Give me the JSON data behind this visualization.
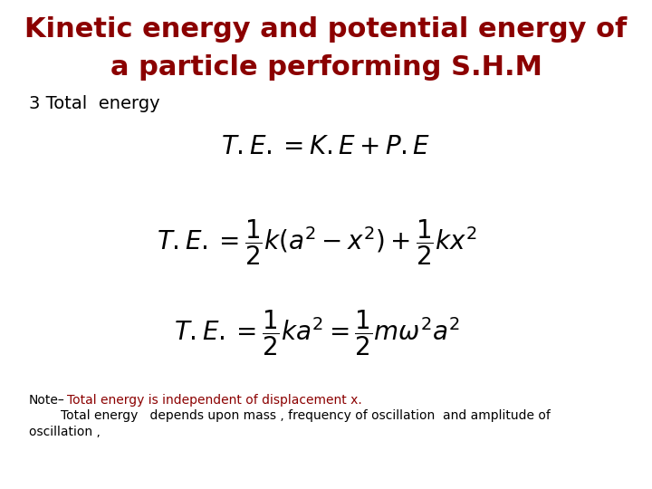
{
  "title_line1": "Kinetic energy and potential energy of",
  "title_line2": "a particle performing S.H.M",
  "title_color": "#8B0000",
  "subtitle": "3 Total  energy",
  "subtitle_color": "#000000",
  "eq1": "$T.E. = K.E + P.E$",
  "eq2": "$T.E. = \\dfrac{1}{2}k(a^{2}-x^{2})+\\dfrac{1}{2}kx^{2}$",
  "eq3": "$T.E. = \\dfrac{1}{2}ka^{2} = \\dfrac{1}{2}m\\omega^{2}a^{2}$",
  "note_black": "Note–",
  "note_red": "Total energy is independent of displacement x.",
  "note_line2": "        Total energy   depends upon mass , frequency of oscillation  and amplitude of",
  "note_line3": "oscillation ,",
  "note_color_black": "#000000",
  "note_color_red": "#8B0000",
  "bg_color": "#ffffff",
  "eq_color": "#000000",
  "eq_fontsize": 20,
  "title_fontsize": 22,
  "subtitle_fontsize": 14,
  "note_fontsize": 10
}
